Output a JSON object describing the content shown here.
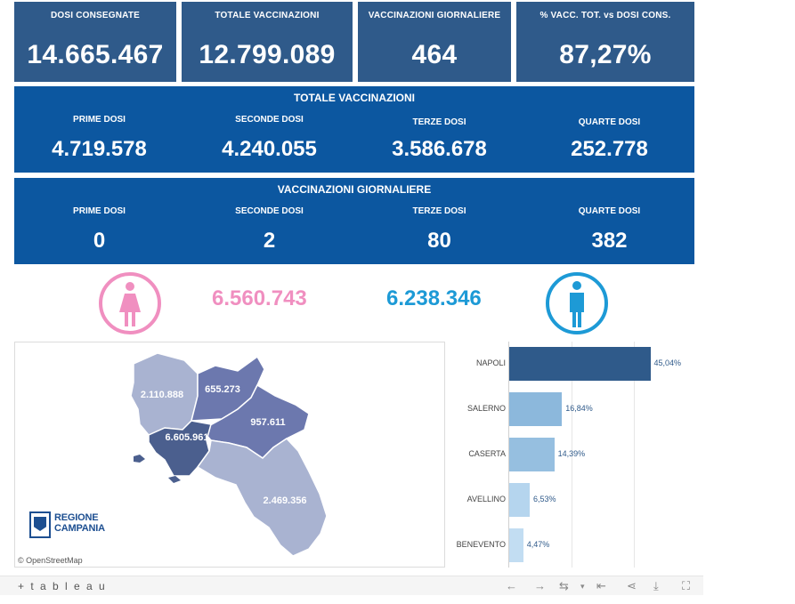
{
  "kpis": [
    {
      "label": "DOSI  CONSEGNATE",
      "value": "14.665.467"
    },
    {
      "label": "TOTALE VACCINAZIONI",
      "value": "12.799.089"
    },
    {
      "label": "VACCINAZIONI GIORNALIERE",
      "value": "464"
    },
    {
      "label": "% VACC. TOT. vs DOSI CONS.",
      "value": "87,27%"
    }
  ],
  "totale": {
    "title": "TOTALE VACCINAZIONI",
    "items": [
      {
        "label": "PRIME DOSI",
        "value": "4.719.578"
      },
      {
        "label": "SECONDE DOSI",
        "value": "4.240.055"
      },
      {
        "label": "TERZE DOSI",
        "value": "3.586.678"
      },
      {
        "label": "QUARTE DOSI",
        "value": "252.778"
      }
    ]
  },
  "giornaliere": {
    "title": "VACCINAZIONI GIORNALIERE",
    "items": [
      {
        "label": "PRIME DOSI",
        "value": "0"
      },
      {
        "label": "SECONDE DOSI",
        "value": "2"
      },
      {
        "label": "TERZE DOSI",
        "value": "80"
      },
      {
        "label": "QUARTE DOSI",
        "value": "382"
      }
    ]
  },
  "gender": {
    "female_value": "6.560.743",
    "male_value": "6.238.346",
    "female_color": "#f08fc0",
    "male_color": "#1d9ad6"
  },
  "map": {
    "labels": {
      "caserta": "2.110.888",
      "benevento": "655.273",
      "avellino": "957.611",
      "napoli": "6.605.961",
      "salerno": "2.469.356"
    },
    "logo_line1": "REGIONE",
    "logo_line2": "CAMPANIA",
    "attribution": "© OpenStreetMap"
  },
  "chart_data": {
    "type": "bar",
    "orientation": "horizontal",
    "categories": [
      "NAPOLI",
      "SALERNO",
      "CASERTA",
      "AVELLINO",
      "BENEVENTO"
    ],
    "values": [
      45.04,
      16.84,
      14.39,
      6.53,
      4.47
    ],
    "labels": [
      "45,04%",
      "16,84%",
      "14,39%",
      "6,53%",
      "4,47%"
    ],
    "xlim": [
      0,
      50
    ],
    "colors": [
      "#2f5a8a",
      "#8cb8dc",
      "#96bfe0",
      "#b5d5ee",
      "#c2ddf2"
    ]
  },
  "toolbar": {
    "brand": "+ t a b l e a u"
  }
}
